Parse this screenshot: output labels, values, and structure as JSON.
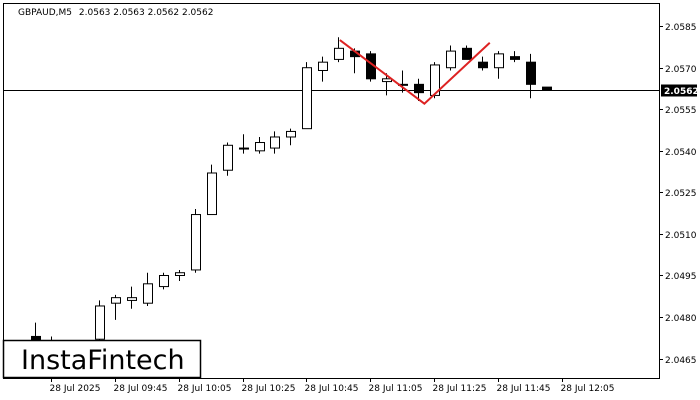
{
  "chart_data": {
    "type": "candlestick",
    "header": "GBPAUD,M5  2.0563 2.0563 2.0562 2.0562",
    "symbol": "GBPAUD,M5",
    "ohlc_header": "2.0563 2.0563 2.0562 2.0562",
    "current_price": 2.0562,
    "current_price_label": "2.0562",
    "ylim": [
      2.0458,
      2.0593
    ],
    "y_ticks": [
      {
        "value": 2.0585,
        "label": "2.0585"
      },
      {
        "value": 2.057,
        "label": "2.0570"
      },
      {
        "value": 2.0555,
        "label": "2.0555"
      },
      {
        "value": 2.054,
        "label": "2.0540"
      },
      {
        "value": 2.0525,
        "label": "2.0525"
      },
      {
        "value": 2.051,
        "label": "2.0510"
      },
      {
        "value": 2.0495,
        "label": "2.0495"
      },
      {
        "value": 2.048,
        "label": "2.0480"
      },
      {
        "value": 2.0465,
        "label": "2.0465"
      }
    ],
    "x_ticks": [
      {
        "index": -3,
        "label": "28 Jul 2025"
      },
      {
        "index": 1,
        "label": "28 Jul 09:45"
      },
      {
        "index": 5,
        "label": "28 Jul 10:05"
      },
      {
        "index": 9,
        "label": "28 Jul 10:25"
      },
      {
        "index": 13,
        "label": "28 Jul 10:45"
      },
      {
        "index": 17,
        "label": "28 Jul 11:05"
      },
      {
        "index": 21,
        "label": "28 Jul 11:25"
      },
      {
        "index": 25,
        "label": "28 Jul 11:45"
      },
      {
        "index": 29,
        "label": "28 Jul 12:05"
      }
    ],
    "candles": [
      {
        "i": -4,
        "o": 2.0473,
        "h": 2.0478,
        "l": 2.046,
        "c": 2.0466
      },
      {
        "i": -3,
        "o": 2.0468,
        "h": 2.0473,
        "l": 2.046,
        "c": 2.0471
      },
      {
        "i": 0,
        "o": 2.0472,
        "h": 2.0486,
        "l": 2.0468,
        "c": 2.0484
      },
      {
        "i": 1,
        "o": 2.0485,
        "h": 2.0488,
        "l": 2.0479,
        "c": 2.0487
      },
      {
        "i": 2,
        "o": 2.0486,
        "h": 2.0491,
        "l": 2.0483,
        "c": 2.0487
      },
      {
        "i": 3,
        "o": 2.0485,
        "h": 2.0496,
        "l": 2.0484,
        "c": 2.0492
      },
      {
        "i": 4,
        "o": 2.0491,
        "h": 2.0496,
        "l": 2.049,
        "c": 2.0495
      },
      {
        "i": 5,
        "o": 2.0495,
        "h": 2.0497,
        "l": 2.0493,
        "c": 2.0496
      },
      {
        "i": 6,
        "o": 2.0497,
        "h": 2.0519,
        "l": 2.0496,
        "c": 2.0517
      },
      {
        "i": 7,
        "o": 2.0517,
        "h": 2.0535,
        "l": 2.0517,
        "c": 2.0532
      },
      {
        "i": 8,
        "o": 2.0533,
        "h": 2.0543,
        "l": 2.0531,
        "c": 2.0542
      },
      {
        "i": 9,
        "o": 2.0541,
        "h": 2.0546,
        "l": 2.0539,
        "c": 2.0541
      },
      {
        "i": 10,
        "o": 2.054,
        "h": 2.0545,
        "l": 2.0539,
        "c": 2.0543
      },
      {
        "i": 11,
        "o": 2.0541,
        "h": 2.0547,
        "l": 2.0539,
        "c": 2.0545
      },
      {
        "i": 12,
        "o": 2.0545,
        "h": 2.0548,
        "l": 2.0542,
        "c": 2.0547
      },
      {
        "i": 13,
        "o": 2.0548,
        "h": 2.0572,
        "l": 2.0548,
        "c": 2.057
      },
      {
        "i": 14,
        "o": 2.0569,
        "h": 2.0574,
        "l": 2.0565,
        "c": 2.0572
      },
      {
        "i": 15,
        "o": 2.0573,
        "h": 2.0581,
        "l": 2.0572,
        "c": 2.0577
      },
      {
        "i": 16,
        "o": 2.0576,
        "h": 2.0577,
        "l": 2.0568,
        "c": 2.0574
      },
      {
        "i": 17,
        "o": 2.0575,
        "h": 2.0576,
        "l": 2.0565,
        "c": 2.0566
      },
      {
        "i": 18,
        "o": 2.0565,
        "h": 2.0568,
        "l": 2.056,
        "c": 2.0566
      },
      {
        "i": 19,
        "o": 2.0564,
        "h": 2.0569,
        "l": 2.0561,
        "c": 2.0564
      },
      {
        "i": 20,
        "o": 2.0564,
        "h": 2.0566,
        "l": 2.0558,
        "c": 2.0561
      },
      {
        "i": 21,
        "o": 2.056,
        "h": 2.0572,
        "l": 2.0559,
        "c": 2.0571
      },
      {
        "i": 22,
        "o": 2.057,
        "h": 2.0578,
        "l": 2.0569,
        "c": 2.0576
      },
      {
        "i": 23,
        "o": 2.0577,
        "h": 2.0578,
        "l": 2.0573,
        "c": 2.0573
      },
      {
        "i": 24,
        "o": 2.0572,
        "h": 2.0574,
        "l": 2.0569,
        "c": 2.057
      },
      {
        "i": 25,
        "o": 2.057,
        "h": 2.0576,
        "l": 2.0566,
        "c": 2.0575
      },
      {
        "i": 26,
        "o": 2.0574,
        "h": 2.0576,
        "l": 2.0572,
        "c": 2.0573
      },
      {
        "i": 27,
        "o": 2.0572,
        "h": 2.0575,
        "l": 2.0559,
        "c": 2.0564
      },
      {
        "i": 28,
        "o": 2.0563,
        "h": 2.0563,
        "l": 2.0562,
        "c": 2.0562
      }
    ],
    "pattern_line": [
      {
        "i": 15.1,
        "price": 2.058
      },
      {
        "i": 20.4,
        "price": 2.0557
      },
      {
        "i": 24.5,
        "price": 2.0579
      }
    ],
    "colors": {
      "background": "#ffffff",
      "candle_outline": "#000000",
      "bull_body": "#ffffff",
      "bear_body": "#000000",
      "pattern": "#dd2222",
      "price_line": "#000000"
    }
  },
  "brand": {
    "logo_text": "InstaFintech"
  }
}
